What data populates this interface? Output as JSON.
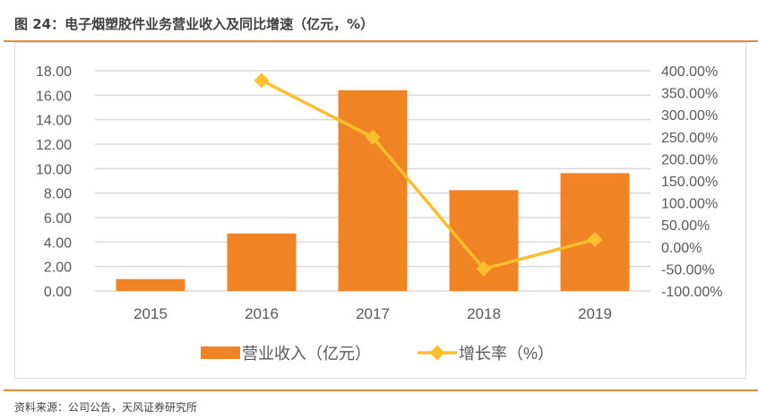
{
  "title": "图 24：电子烟塑胶件业务营业收入及同比增速（亿元，%）",
  "source": "资料来源：公司公告，天风证券研究所",
  "colors": {
    "bar": "#f08424",
    "line": "#fbbf2d",
    "accent_rule": "#e28c3c",
    "grid": "#d9d9d9"
  },
  "chart_data": {
    "type": "bar+line",
    "categories": [
      "2015",
      "2016",
      "2017",
      "2018",
      "2019"
    ],
    "series": [
      {
        "name": "营业收入（亿元）",
        "type": "bar",
        "axis": "left",
        "values": [
          0.97,
          4.7,
          16.41,
          8.24,
          9.63
        ]
      },
      {
        "name": "增长率（%）",
        "type": "line",
        "axis": "right",
        "values": [
          null,
          378,
          249,
          -49.8,
          16.9
        ]
      }
    ],
    "y_left": {
      "range": [
        0,
        18
      ],
      "ticks": [
        "0.00",
        "2.00",
        "4.00",
        "6.00",
        "8.00",
        "10.00",
        "12.00",
        "14.00",
        "16.00",
        "18.00"
      ]
    },
    "y_right": {
      "range": [
        -100,
        400
      ],
      "ticks": [
        "-100.00%",
        "-50.00%",
        "0.00%",
        "50.00%",
        "100.00%",
        "150.00%",
        "200.00%",
        "250.00%",
        "300.00%",
        "350.00%",
        "400.00%"
      ]
    },
    "grid": true,
    "legend": "bottom"
  }
}
